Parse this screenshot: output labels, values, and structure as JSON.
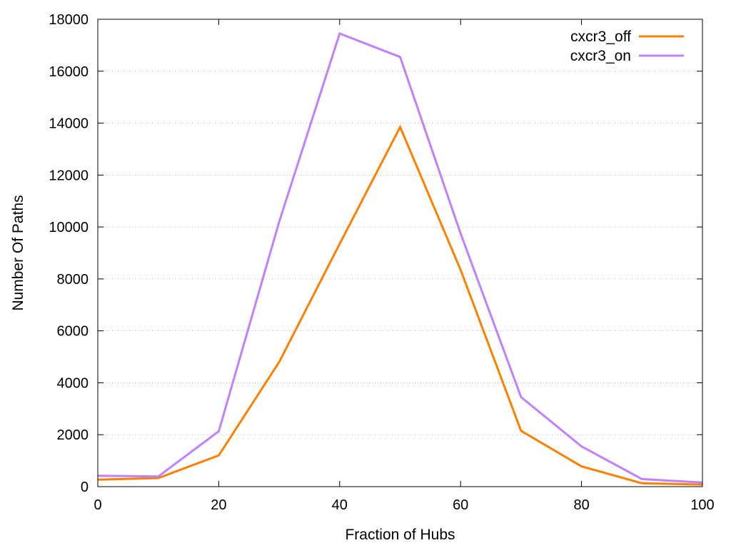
{
  "chart_data": {
    "type": "line",
    "xlabel": "Fraction of Hubs",
    "ylabel": "Number Of Paths",
    "xlim": [
      0,
      100
    ],
    "ylim": [
      0,
      18000
    ],
    "x_ticks": [
      0,
      20,
      40,
      60,
      80,
      100
    ],
    "y_ticks": [
      0,
      2000,
      4000,
      6000,
      8000,
      10000,
      12000,
      14000,
      16000,
      18000
    ],
    "grid": "horizontal-dotted",
    "legend_position": "top-right",
    "x": [
      0,
      10,
      20,
      30,
      40,
      50,
      60,
      70,
      80,
      90,
      100
    ],
    "series": [
      {
        "name": "cxcr3_off",
        "color": "#ff8000",
        "values": [
          270,
          330,
          1200,
          4800,
          9350,
          13850,
          8350,
          2150,
          780,
          130,
          80
        ]
      },
      {
        "name": "cxcr3_on",
        "color": "#c080ff",
        "values": [
          420,
          390,
          2130,
          10200,
          17450,
          16550,
          9750,
          3450,
          1550,
          290,
          160
        ]
      }
    ]
  }
}
